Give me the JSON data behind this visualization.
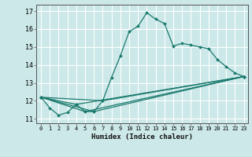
{
  "title": "",
  "xlabel": "Humidex (Indice chaleur)",
  "background_color": "#cce8e8",
  "grid_color": "#ffffff",
  "line_color": "#1a7a6e",
  "xlim": [
    -0.5,
    23.5
  ],
  "ylim": [
    10.75,
    17.35
  ],
  "yticks": [
    11,
    12,
    13,
    14,
    15,
    16,
    17
  ],
  "xticks": [
    0,
    1,
    2,
    3,
    4,
    5,
    6,
    7,
    8,
    9,
    10,
    11,
    12,
    13,
    14,
    15,
    16,
    17,
    18,
    19,
    20,
    21,
    22,
    23
  ],
  "series": [
    [
      0,
      12.2
    ],
    [
      1,
      11.6
    ],
    [
      2,
      11.2
    ],
    [
      3,
      11.35
    ],
    [
      4,
      11.8
    ],
    [
      5,
      11.4
    ],
    [
      6,
      11.4
    ],
    [
      7,
      12.0
    ],
    [
      8,
      13.3
    ],
    [
      9,
      14.5
    ],
    [
      10,
      15.85
    ],
    [
      11,
      16.15
    ],
    [
      12,
      16.9
    ],
    [
      13,
      16.55
    ],
    [
      14,
      16.3
    ],
    [
      15,
      15.05
    ],
    [
      16,
      15.2
    ],
    [
      17,
      15.1
    ],
    [
      18,
      15.0
    ],
    [
      19,
      14.9
    ],
    [
      20,
      14.3
    ],
    [
      21,
      13.9
    ],
    [
      22,
      13.55
    ],
    [
      23,
      13.35
    ]
  ],
  "series2": [
    [
      0,
      12.2
    ],
    [
      4,
      11.8
    ],
    [
      23,
      13.35
    ]
  ],
  "series3": [
    [
      0,
      12.2
    ],
    [
      7,
      12.0
    ],
    [
      23,
      13.35
    ]
  ],
  "series4": [
    [
      0,
      12.2
    ],
    [
      5,
      11.4
    ],
    [
      23,
      13.35
    ]
  ],
  "series5": [
    [
      0,
      12.2
    ],
    [
      6,
      11.4
    ],
    [
      23,
      13.35
    ]
  ]
}
